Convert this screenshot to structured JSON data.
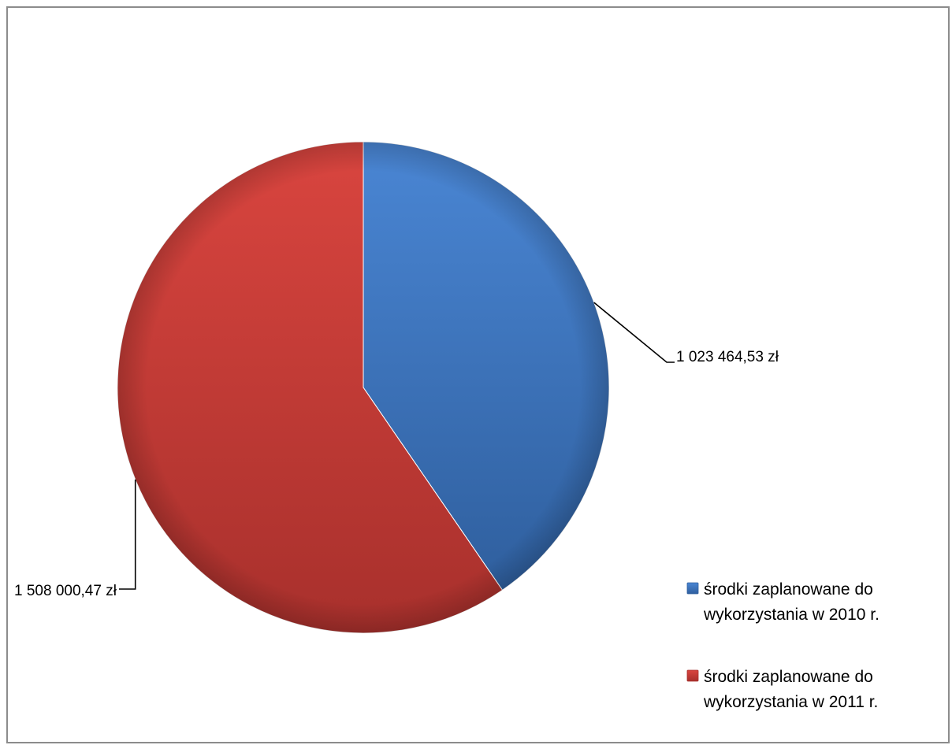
{
  "chart_data": {
    "type": "pie",
    "title": "",
    "series": [
      {
        "name": "",
        "values": [
          1023464.53,
          1508000.47
        ]
      }
    ],
    "slices": [
      {
        "label": "środki zaplanowane do wykorzystania w 2010 r.",
        "legend_lines": [
          "środki zaplanowane do",
          "wykorzystania w 2010 r."
        ],
        "value": 1023464.53,
        "data_label": "1 023 464,53 zł",
        "color": "#4a86d4",
        "color_dark": "#2f5f9e"
      },
      {
        "label": "środki zaplanowane do wykorzystania w 2011 r.",
        "legend_lines": [
          "środki zaplanowane do",
          "wykorzystania w 2011 r."
        ],
        "value": 1508000.47,
        "data_label": "1 508 000,47 zł",
        "color": "#d9453f",
        "color_dark": "#a8302c"
      }
    ],
    "legend_position": "bottom-right",
    "start_angle": "12 o'clock",
    "direction": "clockwise"
  }
}
